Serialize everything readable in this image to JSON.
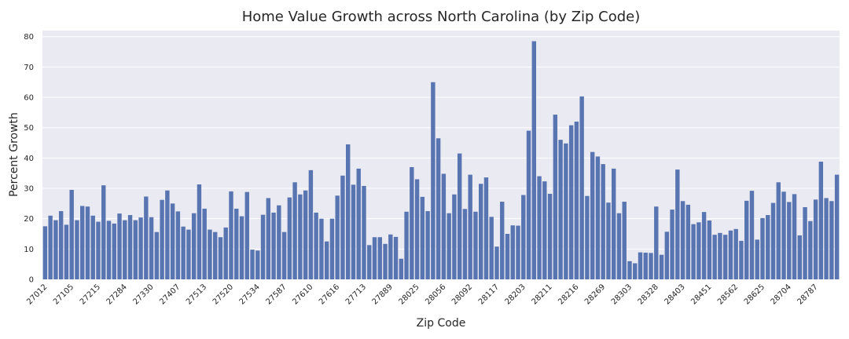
{
  "chart_data": {
    "type": "bar",
    "title": "Home Value Growth across North Carolina (by Zip Code)",
    "xlabel": "Zip Code",
    "ylabel": "Percent Growth",
    "ylim": [
      0,
      82
    ],
    "yticks": [
      0,
      10,
      20,
      30,
      40,
      50,
      60,
      70,
      80
    ],
    "grid": true,
    "tick_labels": [
      "27012",
      "27105",
      "27215",
      "27284",
      "27330",
      "27407",
      "27513",
      "27520",
      "27534",
      "27587",
      "27610",
      "27616",
      "27713",
      "27889",
      "28025",
      "28056",
      "28092",
      "28117",
      "28203",
      "28211",
      "28216",
      "28269",
      "28303",
      "28328",
      "28403",
      "28451",
      "28562",
      "28625",
      "28704",
      "28787"
    ],
    "tick_label_every": 5,
    "values": [
      17.5,
      21,
      19.5,
      22.5,
      18,
      29.5,
      19.5,
      24.2,
      24,
      21,
      19,
      31,
      19.3,
      18.4,
      21.7,
      19.5,
      21.2,
      19.5,
      20.4,
      27.3,
      20.5,
      15.6,
      26.2,
      29.3,
      25,
      22.4,
      17.4,
      16.4,
      21.8,
      31.3,
      23.3,
      16.4,
      15.6,
      13.9,
      17.1,
      29,
      23.3,
      20.8,
      28.8,
      9.8,
      9.5,
      21.3,
      26.8,
      22,
      24.4,
      15.6,
      27,
      32,
      28,
      29.3,
      36,
      22,
      20,
      12.5,
      20,
      27.6,
      34.2,
      44.5,
      31.2,
      36.5,
      30.8,
      11.3,
      13.9,
      13.9,
      11.7,
      14.8,
      14,
      6.8,
      22.3,
      37,
      33,
      27.2,
      22.5,
      65,
      46.5,
      34.8,
      21.8,
      28,
      41.5,
      23.2,
      34.5,
      22.3,
      31.5,
      33.6,
      20.6,
      10.8,
      25.6,
      15,
      17.8,
      17.7,
      27.8,
      49,
      78.5,
      34,
      32.3,
      28.2,
      54.3,
      46,
      44.8,
      50.8,
      52,
      60.3,
      27.5,
      42,
      40.5,
      38,
      25.3,
      36.5,
      21.8,
      25.6,
      6,
      5.3,
      8.9,
      8.8,
      8.7,
      24,
      8.1,
      15.7,
      23,
      36.2,
      25.8,
      24.6,
      18.2,
      18.8,
      22.2,
      19.4,
      14.7,
      15.3,
      14.7,
      16.1,
      16.6,
      12.7,
      25.9,
      29.2,
      13.1,
      20.2,
      21.2,
      25.2,
      32,
      28.9,
      25.5,
      28.1,
      14.5,
      23.8,
      19.2,
      26.3,
      38.8,
      26.8,
      25.8,
      34.5
    ],
    "bar_color": "#5975b1",
    "background_color": "#eaeaf2",
    "grid_color": "#ffffff"
  }
}
